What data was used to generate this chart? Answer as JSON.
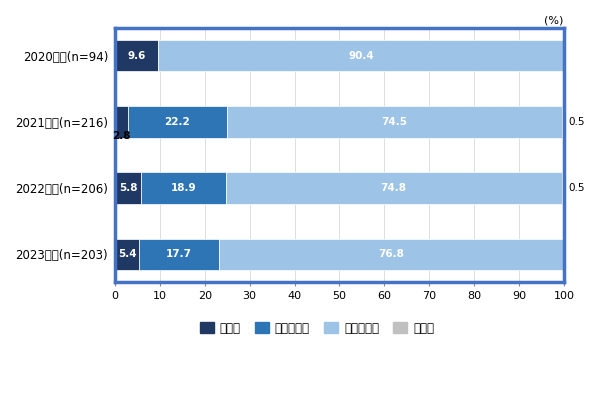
{
  "years": [
    "2020年度(n=94)",
    "2021年度(n=216)",
    "2022年度(n=206)",
    "2023年度(n=203)"
  ],
  "categories": [
    "増えた",
    "やや増えた",
    "変わらない",
    "減った"
  ],
  "values": [
    [
      9.6,
      0.0,
      90.4,
      0.0
    ],
    [
      2.8,
      22.2,
      74.5,
      0.5
    ],
    [
      5.8,
      18.9,
      74.8,
      0.5
    ],
    [
      5.4,
      17.7,
      76.8,
      0.0
    ]
  ],
  "colors": [
    "#1f3864",
    "#2e75b6",
    "#9dc3e6",
    "#c0c0c0"
  ],
  "bar_labels_inside": [
    [
      "9.6",
      "",
      "90.4",
      ""
    ],
    [
      "",
      "22.2",
      "74.5",
      ""
    ],
    [
      "5.8",
      "18.9",
      "74.8",
      ""
    ],
    [
      "5.4",
      "17.7",
      "76.8",
      ""
    ]
  ],
  "bar_labels_above": [
    [
      "",
      "",
      "",
      ""
    ],
    [
      "2.8",
      "",
      "",
      ""
    ],
    [
      "",
      "",
      "",
      ""
    ],
    [
      "",
      "",
      "",
      ""
    ]
  ],
  "bar_labels_right": [
    [
      "",
      "",
      "",
      ""
    ],
    [
      "",
      "",
      "",
      "0.5"
    ],
    [
      "",
      "",
      "",
      "0.5"
    ],
    [
      "",
      "",
      "",
      ""
    ]
  ],
  "xlim": [
    0,
    100
  ],
  "xticks": [
    0,
    10,
    20,
    30,
    40,
    50,
    60,
    70,
    80,
    90,
    100
  ],
  "background_color": "#ffffff",
  "border_color": "#4472c4",
  "tick_fontsize": 8,
  "bar_label_fontsize": 7.5,
  "ytick_fontsize": 8.5,
  "legend_fontsize": 8.5
}
